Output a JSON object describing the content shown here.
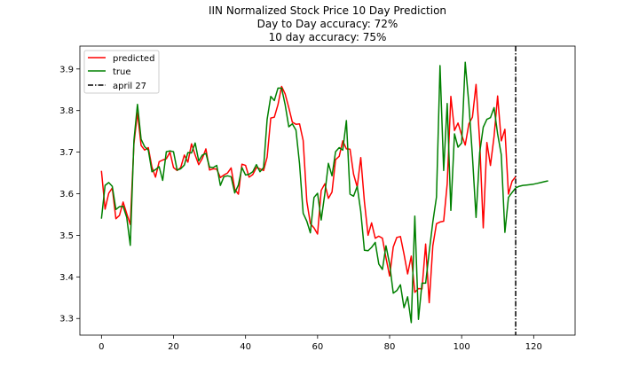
{
  "chart_data": {
    "type": "line",
    "title_lines": [
      "IIN Normalized Stock Price 10 Day Prediction",
      "Day to Day accuracy: 72%",
      "10 day accuracy: 75%"
    ],
    "xlabel": "",
    "ylabel": "",
    "xlim": [
      -6,
      131.5
    ],
    "ylim": [
      3.26,
      3.955
    ],
    "xticks": [
      0,
      20,
      40,
      60,
      80,
      100,
      120
    ],
    "yticks": [
      3.3,
      3.4,
      3.5,
      3.6,
      3.7,
      3.8,
      3.9
    ],
    "grid": false,
    "legend_position": "top-left",
    "series": [
      {
        "name": "predicted",
        "color": "#ff0000",
        "x_start": 0,
        "values": [
          3.655,
          3.563,
          3.601,
          3.614,
          3.54,
          3.548,
          3.58,
          3.552,
          3.526,
          3.72,
          3.795,
          3.716,
          3.705,
          3.711,
          3.664,
          3.64,
          3.677,
          3.681,
          3.684,
          3.7,
          3.663,
          3.656,
          3.663,
          3.693,
          3.676,
          3.72,
          3.693,
          3.67,
          3.685,
          3.708,
          3.657,
          3.66,
          3.659,
          3.639,
          3.645,
          3.65,
          3.662,
          3.611,
          3.599,
          3.671,
          3.668,
          3.64,
          3.646,
          3.663,
          3.66,
          3.656,
          3.688,
          3.782,
          3.784,
          3.814,
          3.858,
          3.84,
          3.807,
          3.772,
          3.767,
          3.768,
          3.728,
          3.582,
          3.528,
          3.518,
          3.503,
          3.608,
          3.624,
          3.589,
          3.604,
          3.682,
          3.69,
          3.727,
          3.708,
          3.707,
          3.647,
          3.616,
          3.687,
          3.581,
          3.5,
          3.53,
          3.493,
          3.498,
          3.493,
          3.446,
          3.402,
          3.472,
          3.495,
          3.497,
          3.455,
          3.407,
          3.45,
          3.363,
          3.372,
          3.371,
          3.479,
          3.338,
          3.475,
          3.528,
          3.532,
          3.534,
          3.624,
          3.834,
          3.752,
          3.77,
          3.741,
          3.717,
          3.768,
          3.784,
          3.863,
          3.726,
          3.518,
          3.723,
          3.668,
          3.738,
          3.835,
          3.727,
          3.755,
          3.599,
          3.63,
          3.641
        ]
      },
      {
        "name": "true",
        "color": "#008000",
        "x_start": 0,
        "values": [
          3.54,
          3.62,
          3.627,
          3.618,
          3.562,
          3.569,
          3.57,
          3.543,
          3.476,
          3.728,
          3.815,
          3.731,
          3.713,
          3.705,
          3.653,
          3.658,
          3.665,
          3.632,
          3.701,
          3.703,
          3.701,
          3.657,
          3.66,
          3.669,
          3.699,
          3.698,
          3.722,
          3.679,
          3.693,
          3.697,
          3.664,
          3.663,
          3.668,
          3.62,
          3.641,
          3.643,
          3.641,
          3.602,
          3.621,
          3.663,
          3.645,
          3.647,
          3.653,
          3.67,
          3.653,
          3.663,
          3.779,
          3.834,
          3.824,
          3.854,
          3.854,
          3.814,
          3.761,
          3.768,
          3.753,
          3.672,
          3.553,
          3.534,
          3.506,
          3.591,
          3.601,
          3.537,
          3.6,
          3.673,
          3.643,
          3.701,
          3.711,
          3.705,
          3.776,
          3.599,
          3.594,
          3.618,
          3.557,
          3.464,
          3.463,
          3.471,
          3.483,
          3.431,
          3.418,
          3.475,
          3.431,
          3.361,
          3.367,
          3.381,
          3.326,
          3.352,
          3.29,
          3.546,
          3.298,
          3.385,
          3.385,
          3.46,
          3.532,
          3.592,
          3.908,
          3.656,
          3.817,
          3.56,
          3.744,
          3.712,
          3.722,
          3.916,
          3.816,
          3.691,
          3.543,
          3.699,
          3.76,
          3.779,
          3.783,
          3.807,
          3.744,
          3.694,
          3.507,
          3.591,
          3.603,
          3.614,
          3.618,
          3.62,
          3.621,
          3.622,
          3.623,
          3.625,
          3.627,
          3.629,
          3.631
        ]
      }
    ],
    "vline": {
      "name": "april 27",
      "x": 115,
      "color": "#000000",
      "style": "dashdot"
    }
  }
}
